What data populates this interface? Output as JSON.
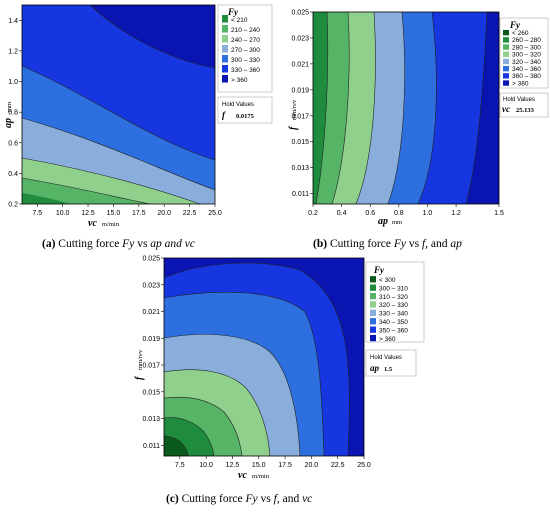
{
  "chart_data": [
    {
      "type": "contour",
      "caption": "(a) Cutting force  Fy  vs ap and vc",
      "caption_parts": {
        "label": "(a)",
        "text": "Cutting force",
        "var": "Fy",
        "mid": "vs",
        "v1": "ap",
        "conj": "and",
        "v2": "vc"
      },
      "xlabel": "vc",
      "xunit": "m/min",
      "ylabel": "ap",
      "yunit": "mm",
      "xlim": [
        6.0,
        25.0
      ],
      "ylim": [
        0.2,
        1.5
      ],
      "xticks": [
        "7.5",
        "10.0",
        "12.5",
        "15.0",
        "17.5",
        "20.0",
        "22.5",
        "25.0"
      ],
      "yticks": [
        "0.2",
        "0.4",
        "0.6",
        "0.8",
        "1.0",
        "1.2",
        "1.4"
      ],
      "legend_title": "Fy",
      "legend": [
        "< 210",
        "210 – 240",
        "240 – 270",
        "270 – 300",
        "300 – 330",
        "330 – 360",
        "> 360"
      ],
      "hold_title": "Hold Values",
      "hold_var": "f",
      "hold_value": "0.0175"
    },
    {
      "type": "contour",
      "caption": "(b) Cutting force  Fy  vs f, and ap",
      "caption_parts": {
        "label": "(b)",
        "text": "Cutting force",
        "var": "Fy",
        "mid": "vs",
        "v1": "f,",
        "conj": "and",
        "v2": "ap"
      },
      "xlabel": "ap",
      "xunit": "mm",
      "ylabel": "f",
      "yunit": "mm/rev",
      "xlim": [
        0.2,
        1.5
      ],
      "ylim": [
        0.0102,
        0.025
      ],
      "xticks": [
        "0.2",
        "0.4",
        "0.6",
        "0.8",
        "1.0",
        "1.2",
        "1.5"
      ],
      "yticks": [
        "0.011",
        "0.013",
        "0.015",
        "0.017",
        "0.019",
        "0.021",
        "0.023",
        "0.025"
      ],
      "legend_title": "Fy",
      "legend": [
        "< 260",
        "260 – 280",
        "280 – 300",
        "300 – 320",
        "320 – 340",
        "340 – 360",
        "360 – 380",
        "> 380"
      ],
      "hold_title": "Hold Values",
      "hold_var": "vc",
      "hold_value": "25.133"
    },
    {
      "type": "contour",
      "caption": "(c) Cutting force  Fy  vs f, and vc",
      "caption_parts": {
        "label": "(c)",
        "text": "Cutting force",
        "var": "Fy",
        "mid": "vs",
        "v1": "f,",
        "conj": "and",
        "v2": "vc"
      },
      "xlabel": "vc",
      "xunit": "m/min",
      "ylabel": "f",
      "yunit": "mm/rev",
      "xlim": [
        6.0,
        25.0
      ],
      "ylim": [
        0.0102,
        0.025
      ],
      "xticks": [
        "7.5",
        "10.0",
        "12.5",
        "15.0",
        "17.5",
        "20.0",
        "22.5",
        "25.0"
      ],
      "yticks": [
        "0.011",
        "0.013",
        "0.015",
        "0.017",
        "0.019",
        "0.021",
        "0.023",
        "0.025"
      ],
      "legend_title": "Fy",
      "legend": [
        "< 300",
        "300 – 310",
        "310 – 320",
        "320 – 330",
        "330 – 340",
        "340 – 350",
        "350 – 360",
        "> 360"
      ],
      "hold_title": "Hold Values",
      "hold_var": "ap",
      "hold_value": "1.5"
    }
  ],
  "colors": {
    "level_1": "#0a5a1e",
    "level_2": "#1e8c3c",
    "level_3": "#55b466",
    "level_4": "#8fd08c",
    "level_5": "#8aaedc",
    "level_6": "#2e6fe0",
    "level_7": "#1636e0",
    "level_8": "#0a14b0"
  }
}
